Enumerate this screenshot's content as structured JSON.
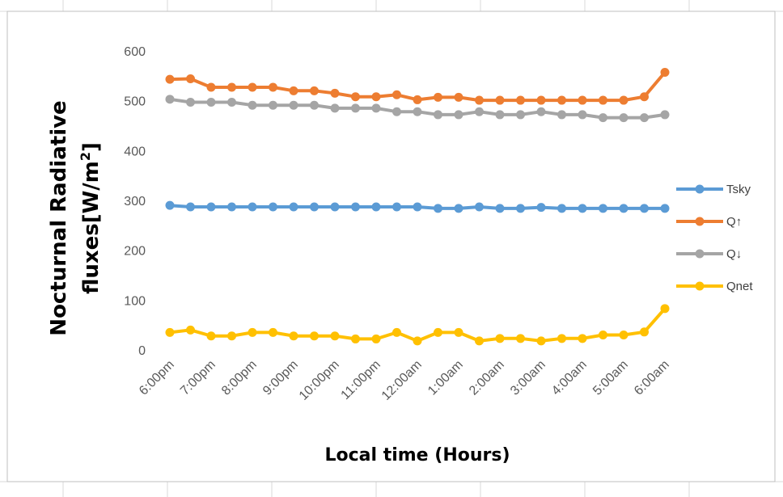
{
  "chart_data": {
    "type": "line",
    "title": "",
    "xlabel": "Local time (Hours)",
    "ylabel_line1": "Nocturnal Radiative",
    "ylabel_line2": "fluxes[W/m",
    "ylabel_superscript": "2",
    "ylabel_close": "]",
    "ylim": [
      0,
      600
    ],
    "yticks": [
      0,
      100,
      200,
      300,
      400,
      500,
      600
    ],
    "grid": false,
    "legend_position": "right",
    "x_tick_labels": [
      "6:00pm",
      "7:00pm",
      "8:00pm",
      "9:00pm",
      "10:00pm",
      "11:00pm",
      "12:00am",
      "1:00am",
      "2:00am",
      "3:00am",
      "4:00am",
      "5:00am",
      "6:00am"
    ],
    "x": [
      "6:00pm",
      "6:30pm",
      "7:00pm",
      "7:30pm",
      "8:00pm",
      "8:30pm",
      "9:00pm",
      "9:30pm",
      "10:00pm",
      "10:30pm",
      "11:00pm",
      "11:30pm",
      "12:00am",
      "12:30am",
      "1:00am",
      "1:30am",
      "2:00am",
      "2:30am",
      "3:00am",
      "3:30am",
      "4:00am",
      "4:30am",
      "5:00am",
      "5:30am",
      "6:00am"
    ],
    "series": [
      {
        "name": "Tsky",
        "color": "#5b9bd5",
        "values": [
          290,
          287,
          287,
          287,
          287,
          287,
          287,
          287,
          287,
          287,
          287,
          287,
          287,
          284,
          284,
          287,
          284,
          284,
          286,
          284,
          284,
          284,
          284,
          284,
          284
        ]
      },
      {
        "name": "Q↑",
        "color": "#ed7d31",
        "values": [
          543,
          544,
          527,
          527,
          527,
          527,
          520,
          520,
          515,
          508,
          508,
          512,
          502,
          507,
          507,
          501,
          501,
          501,
          501,
          501,
          501,
          501,
          501,
          508,
          557
        ]
      },
      {
        "name": "Q↓",
        "color": "#a5a5a5",
        "values": [
          503,
          497,
          497,
          497,
          491,
          491,
          491,
          491,
          485,
          485,
          485,
          478,
          478,
          472,
          472,
          478,
          472,
          472,
          478,
          472,
          472,
          466,
          466,
          466,
          472
        ]
      },
      {
        "name": "Qnet",
        "color": "#ffc000",
        "values": [
          35,
          40,
          28,
          28,
          35,
          35,
          28,
          28,
          28,
          22,
          22,
          35,
          18,
          35,
          35,
          18,
          23,
          23,
          18,
          23,
          23,
          30,
          30,
          36,
          83
        ]
      }
    ]
  }
}
